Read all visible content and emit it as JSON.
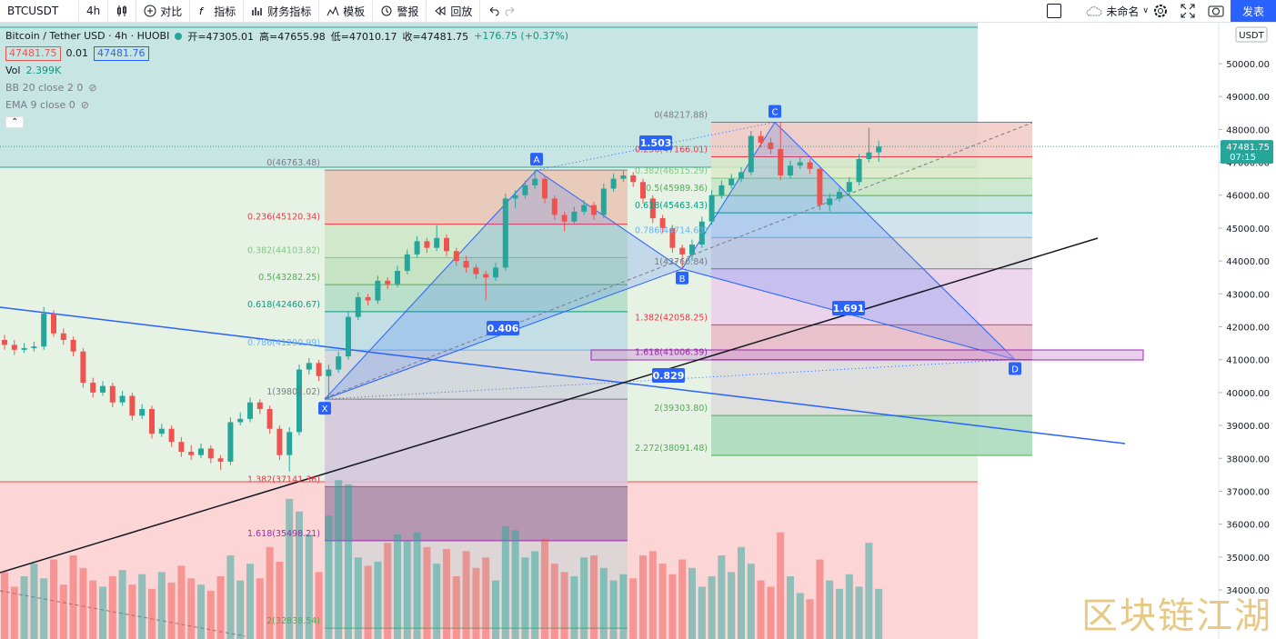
{
  "toolbar": {
    "symbol": "BTCUSDT",
    "interval": "4h",
    "buttons": [
      "对比",
      "指标",
      "财务指标",
      "模板",
      "警报",
      "回放"
    ],
    "layout_name": "未命名",
    "publish": "发表"
  },
  "legend": {
    "title": "Bitcoin / Tether USD · 4h · HUOBI",
    "ohlc": [
      "开=47305.01",
      "高=47655.98",
      "低=47010.17",
      "收=47481.75"
    ],
    "change": "+176.75 (+0.37%)",
    "bid": "47481.75",
    "spread": "0.01",
    "ask": "47481.76",
    "volume_label": "Vol",
    "volume_value": "2.399K",
    "indicators": [
      "BB 20 close 2 0",
      "EMA 9 close 0"
    ]
  },
  "currency": "USDT",
  "watermark": "区块链江湖",
  "chart_data": {
    "type": "candlestick",
    "up_color": "#26a69a",
    "down_color": "#ef5350",
    "ylim": [
      32509,
      51243
    ],
    "yticks": [
      {
        "value": 34000,
        "label": "34000.00"
      },
      {
        "value": 35000,
        "label": "35000.00"
      },
      {
        "value": 36000,
        "label": "36000.00"
      },
      {
        "value": 37000,
        "label": "37000.00"
      },
      {
        "value": 38000,
        "label": "38000.00"
      },
      {
        "value": 39000,
        "label": "39000.00"
      },
      {
        "value": 40000,
        "label": "40000.00"
      },
      {
        "value": 41000,
        "label": "41000.00"
      },
      {
        "value": 42000,
        "label": "42000.00"
      },
      {
        "value": 43000,
        "label": "43000.00"
      },
      {
        "value": 44000,
        "label": "44000.00"
      },
      {
        "value": 45000,
        "label": "45000.00"
      },
      {
        "value": 46000,
        "label": "46000.00"
      },
      {
        "value": 47000,
        "label": "47000.00"
      },
      {
        "value": 48000,
        "label": "48000.00"
      },
      {
        "value": 49000,
        "label": "49000.00"
      },
      {
        "value": 50000,
        "label": "50000.00"
      }
    ],
    "last_price": {
      "value": 47481.75,
      "label": "47481.75",
      "countdown": "07:15"
    },
    "candles": [
      [
        41600,
        41750,
        41300,
        41450
      ],
      [
        41450,
        41600,
        41150,
        41300
      ],
      [
        41300,
        41500,
        41200,
        41350
      ],
      [
        41350,
        41550,
        41250,
        41400
      ],
      [
        41400,
        42600,
        41300,
        42400
      ],
      [
        42400,
        42500,
        41700,
        41800
      ],
      [
        41800,
        41950,
        41450,
        41600
      ],
      [
        41600,
        41700,
        41100,
        41250
      ],
      [
        41250,
        41350,
        40150,
        40300
      ],
      [
        40300,
        40450,
        39850,
        40000
      ],
      [
        40000,
        40350,
        39900,
        40200
      ],
      [
        40200,
        40300,
        39550,
        39700
      ],
      [
        39700,
        40050,
        39600,
        39900
      ],
      [
        39900,
        40000,
        39150,
        39300
      ],
      [
        39300,
        39650,
        39200,
        39500
      ],
      [
        39500,
        39600,
        38600,
        38750
      ],
      [
        38750,
        39050,
        38650,
        38900
      ],
      [
        38900,
        39000,
        38350,
        38500
      ],
      [
        38500,
        38650,
        38050,
        38200
      ],
      [
        38200,
        38400,
        37950,
        38100
      ],
      [
        38100,
        38450,
        38000,
        38300
      ],
      [
        38300,
        38400,
        37850,
        38000
      ],
      [
        38000,
        38100,
        37650,
        37900
      ],
      [
        37900,
        39250,
        37800,
        39100
      ],
      [
        39100,
        39400,
        39000,
        39200
      ],
      [
        39200,
        39850,
        39100,
        39700
      ],
      [
        39700,
        39800,
        39350,
        39500
      ],
      [
        39500,
        39600,
        38750,
        38900
      ],
      [
        38900,
        39000,
        37950,
        38100
      ],
      [
        38100,
        38950,
        37600,
        38800
      ],
      [
        38800,
        40850,
        38700,
        40700
      ],
      [
        40700,
        41050,
        40550,
        40900
      ],
      [
        40900,
        41000,
        40350,
        40500
      ],
      [
        40500,
        40850,
        39801.02,
        40700
      ],
      [
        40700,
        41250,
        40600,
        41100
      ],
      [
        41100,
        42450,
        41000,
        42300
      ],
      [
        42300,
        43050,
        42200,
        42900
      ],
      [
        42900,
        43000,
        42650,
        42800
      ],
      [
        42800,
        43550,
        42700,
        43400
      ],
      [
        43400,
        43500,
        43150,
        43300
      ],
      [
        43300,
        43850,
        43200,
        43700
      ],
      [
        43700,
        44350,
        43600,
        44200
      ],
      [
        44200,
        44750,
        44100,
        44600
      ],
      [
        44600,
        44700,
        44250,
        44400
      ],
      [
        44400,
        45100,
        44300,
        44700
      ],
      [
        44700,
        44800,
        44150,
        44300
      ],
      [
        44300,
        44400,
        43850,
        44000
      ],
      [
        44000,
        44150,
        43650,
        43800
      ],
      [
        43800,
        43900,
        43450,
        43600
      ],
      [
        43600,
        43700,
        42800,
        43500
      ],
      [
        43500,
        43950,
        43400,
        43800
      ],
      [
        43800,
        46050,
        43700,
        45900
      ],
      [
        45900,
        46150,
        45600,
        46000
      ],
      [
        46000,
        46450,
        45900,
        46300
      ],
      [
        46300,
        46763.48,
        46200,
        46500
      ],
      [
        46500,
        46600,
        45750,
        45900
      ],
      [
        45900,
        46000,
        45250,
        45400
      ],
      [
        45400,
        45500,
        44900,
        45200
      ],
      [
        45200,
        45650,
        45100,
        45500
      ],
      [
        45500,
        45850,
        45400,
        45700
      ],
      [
        45700,
        45800,
        45250,
        45400
      ],
      [
        45400,
        46350,
        45300,
        46200
      ],
      [
        46200,
        46650,
        46100,
        46500
      ],
      [
        46500,
        46750,
        46400,
        46600
      ],
      [
        46600,
        46700,
        46250,
        46400
      ],
      [
        46400,
        46500,
        45750,
        45900
      ],
      [
        45900,
        46000,
        45150,
        45300
      ],
      [
        45300,
        45400,
        44850,
        45000
      ],
      [
        45000,
        45100,
        44250,
        44400
      ],
      [
        44400,
        44500,
        43760.84,
        44200
      ],
      [
        44200,
        44650,
        44000,
        44500
      ],
      [
        44500,
        45350,
        44400,
        45200
      ],
      [
        45200,
        46150,
        45100,
        46000
      ],
      [
        46000,
        46450,
        45900,
        46300
      ],
      [
        46300,
        46650,
        46200,
        46500
      ],
      [
        46500,
        46850,
        46400,
        46700
      ],
      [
        46700,
        47950,
        46600,
        47800
      ],
      [
        47800,
        47950,
        47450,
        47600
      ],
      [
        47600,
        47750,
        47250,
        47400
      ],
      [
        47400,
        48217.88,
        46450,
        46600
      ],
      [
        46600,
        47050,
        46500,
        46900
      ],
      [
        46900,
        47150,
        46800,
        47000
      ],
      [
        47000,
        47100,
        46650,
        46800
      ],
      [
        46800,
        46900,
        45550,
        45700
      ],
      [
        45700,
        46050,
        45500,
        45900
      ],
      [
        45900,
        46250,
        45800,
        46100
      ],
      [
        46100,
        46550,
        46000,
        46400
      ],
      [
        46400,
        47250,
        46300,
        47100
      ],
      [
        47100,
        48050,
        47000,
        47300
      ],
      [
        47305.01,
        47655.98,
        47010.17,
        47481.75
      ]
    ],
    "volumes": [
      3.2,
      2.5,
      3.0,
      3.6,
      2.9,
      3.8,
      2.6,
      4.0,
      3.4,
      2.8,
      2.5,
      3.0,
      3.3,
      2.6,
      3.1,
      2.4,
      3.2,
      2.7,
      3.5,
      2.9,
      2.6,
      2.3,
      3.0,
      4.0,
      2.8,
      3.6,
      2.9,
      4.4,
      3.7,
      6.7,
      6.1,
      5.0,
      3.2,
      5.9,
      7.6,
      7.4,
      3.9,
      3.5,
      3.7,
      4.6,
      5.0,
      4.7,
      5.1,
      4.4,
      3.6,
      4.3,
      3.0,
      4.2,
      3.4,
      3.9,
      2.8,
      5.4,
      5.2,
      3.9,
      4.2,
      4.8,
      3.6,
      3.2,
      3.0,
      3.9,
      4.0,
      3.4,
      2.8,
      3.1,
      2.9,
      4.0,
      4.2,
      3.6,
      3.1,
      3.8,
      3.4,
      2.5,
      3.0,
      4.0,
      3.2,
      4.4,
      3.6,
      2.8,
      2.5,
      5.1,
      3.0,
      2.2,
      1.9,
      3.8,
      2.8,
      2.4,
      3.1,
      2.5,
      4.6,
      2.399
    ],
    "fib_sets": [
      {
        "levels": [
          {
            "label": "0(46763.48)",
            "price": 46763.48
          },
          {
            "label": "0.236(45120.34)",
            "price": 45120.34
          },
          {
            "label": "0.382(44103.82)",
            "price": 44103.82
          },
          {
            "label": "0.5(43282.25)",
            "price": 43282.25
          },
          {
            "label": "0.618(42460.67)",
            "price": 42460.67
          },
          {
            "label": "0.786(41290.99)",
            "price": 41290.99
          },
          {
            "label": "1(39801.02)",
            "price": 39801.02
          },
          {
            "label": "1.382(37141.36)",
            "price": 37141.36
          },
          {
            "label": "1.618(35498.21)",
            "price": 35498.21
          },
          {
            "label": "2(32838.54)",
            "price": 32838.54
          }
        ]
      },
      {
        "levels": [
          {
            "label": "0(48217.88)",
            "price": 48217.88
          },
          {
            "label": "0.236(47166.01)",
            "price": 47166.01
          },
          {
            "label": "0.382(46515.29)",
            "price": 46515.29
          },
          {
            "label": "0.5(45989.36)",
            "price": 45989.36
          },
          {
            "label": "0.618(45463.43)",
            "price": 45463.43
          },
          {
            "label": "0.786(44714.63)",
            "price": 44714.63
          },
          {
            "label": "1(43760.84)",
            "price": 43760.84
          },
          {
            "label": "1.382(42058.25)",
            "price": 42058.25
          },
          {
            "label": "1.618(41006.39)",
            "price": 41006.39
          },
          {
            "label": "2(39303.80)",
            "price": 39303.8
          },
          {
            "label": "2.272(38091.48)",
            "price": 38091.48
          }
        ]
      }
    ],
    "harmonic": {
      "points": [
        {
          "label": "X",
          "price": 39801.02
        },
        {
          "label": "A",
          "price": 46763.48
        },
        {
          "label": "B",
          "price": 43760.84
        },
        {
          "label": "C",
          "price": 48217.88
        },
        {
          "label": "D",
          "price": 41006.39
        }
      ],
      "ratios": [
        0.406,
        1.503,
        1.691,
        0.829
      ]
    }
  }
}
